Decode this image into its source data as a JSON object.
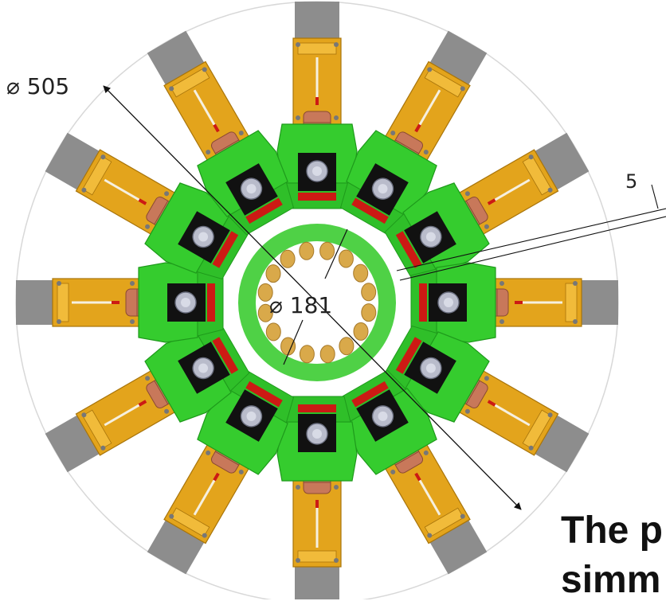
{
  "diagram": {
    "module_count": 12,
    "dimensions": {
      "outer_diameter_label": "⌀ 505",
      "inner_diameter_label": "⌀ 181",
      "gap_label": "5"
    },
    "caption": {
      "line1": "The p",
      "line2": "simm"
    },
    "colors": {
      "outer_circle": "#d8d8d8",
      "green_body": "#35cc2e",
      "green_dark": "#1e9a1b",
      "orange_arm": "#e3a41c",
      "orange_dark": "#a8740a",
      "gray_cap": "#8d8d8d",
      "copper": "#c8785a",
      "black_block": "#111111",
      "silver_knob": "#b9bccb",
      "red_strip": "#cc1a14",
      "inner_ring": "#4fd146",
      "inner_bump": "#d9a94a",
      "line": "#111111"
    }
  }
}
